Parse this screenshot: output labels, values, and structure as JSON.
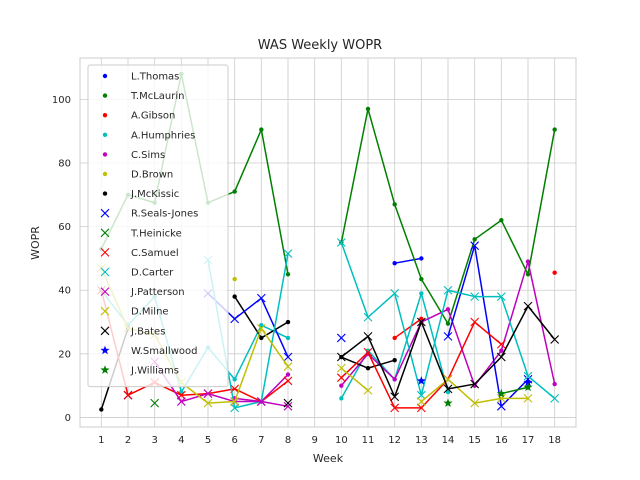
{
  "chart_data": {
    "type": "line",
    "title": "WAS Weekly WOPR",
    "xlabel": "Week",
    "ylabel": "WOPR",
    "xlim": [
      0.2,
      18.8
    ],
    "ylim": [
      -3,
      113
    ],
    "xticks": [
      1,
      2,
      3,
      4,
      5,
      6,
      7,
      8,
      9,
      10,
      11,
      12,
      13,
      14,
      15,
      16,
      17,
      18
    ],
    "yticks": [
      0,
      20,
      40,
      60,
      80,
      100
    ],
    "grid": true,
    "legend_position": "top-left",
    "series": [
      {
        "name": "L.Thomas",
        "color": "#0000ff",
        "marker": "dot",
        "x": [
          12,
          13
        ],
        "y": [
          48.5,
          50
        ]
      },
      {
        "name": "T.McLaurin",
        "color": "#008000",
        "marker": "dot",
        "x": [
          1,
          2,
          3,
          4,
          5,
          6,
          7,
          8,
          null,
          10,
          11,
          12,
          13,
          14,
          15,
          16,
          17,
          18
        ],
        "y": [
          53,
          70,
          67.5,
          108,
          67.5,
          71,
          90.5,
          45,
          null,
          55,
          97,
          67,
          43.5,
          29.5,
          56,
          62,
          45,
          90.5
        ]
      },
      {
        "name": "A.Gibson",
        "color": "#ff0000",
        "marker": "dot",
        "x": [
          12,
          13,
          null,
          18
        ],
        "y": [
          25,
          31,
          null,
          45.5
        ]
      },
      {
        "name": "A.Humphries",
        "color": "#00bfbf",
        "marker": "dot",
        "x": [
          1,
          2,
          3,
          4,
          5,
          6,
          7,
          8,
          null,
          10,
          11,
          12,
          13,
          14
        ],
        "y": [
          40,
          29,
          38,
          8,
          22,
          12,
          29,
          25,
          null,
          6,
          21,
          12,
          39,
          8
        ]
      },
      {
        "name": "C.Sims",
        "color": "#bf00bf",
        "marker": "dot",
        "x": [
          6,
          7,
          8,
          null,
          10,
          11,
          12,
          13,
          14,
          15,
          16,
          17,
          18
        ],
        "y": [
          6,
          5,
          13.5,
          null,
          10,
          20,
          12,
          30,
          34,
          10,
          21,
          49,
          10.5
        ]
      },
      {
        "name": "D.Brown",
        "color": "#bfbf00",
        "marker": "dot",
        "x": [
          6
        ],
        "y": [
          43.5
        ]
      },
      {
        "name": "J.McKissic",
        "color": "#000000",
        "marker": "dot",
        "x": [
          1,
          2,
          null,
          6,
          7,
          8,
          null,
          10,
          11,
          12
        ],
        "y": [
          2.5,
          28,
          null,
          38,
          25,
          30,
          null,
          19,
          15.5,
          18
        ]
      },
      {
        "name": "R.Seals-Jones",
        "color": "#0000ff",
        "marker": "x",
        "x": [
          2,
          null,
          5,
          6,
          7,
          8,
          null,
          10,
          null,
          14,
          15,
          16,
          17
        ],
        "y": [
          7,
          null,
          39,
          31,
          37.5,
          19,
          null,
          25,
          null,
          25.5,
          54,
          3.5,
          12
        ]
      },
      {
        "name": "T.Heinicke",
        "color": "#008000",
        "marker": "x",
        "x": [
          3
        ],
        "y": [
          4.5
        ]
      },
      {
        "name": "C.Samuel",
        "color": "#ff0000",
        "marker": "x",
        "x": [
          1,
          2,
          3,
          4,
          5,
          6,
          7,
          8,
          null,
          10,
          11,
          12,
          13,
          14,
          15,
          16
        ],
        "y": [
          40,
          7,
          11,
          7,
          7.5,
          9,
          5,
          11.5,
          null,
          12.5,
          20.5,
          3,
          3,
          12,
          30,
          23
        ]
      },
      {
        "name": "D.Carter",
        "color": "#00bfbf",
        "marker": "x",
        "x": [
          5,
          6,
          7,
          8,
          null,
          10,
          11,
          12,
          13,
          14,
          15,
          16,
          17,
          18
        ],
        "y": [
          49.5,
          3,
          5,
          51.5,
          null,
          55,
          31.5,
          39,
          7,
          40,
          38,
          38,
          13,
          6
        ]
      },
      {
        "name": "J.Patterson",
        "color": "#bf00bf",
        "marker": "x",
        "x": [
          3,
          4,
          5,
          6,
          7,
          8
        ],
        "y": [
          17.5,
          5,
          7.5,
          5,
          5,
          3.5
        ]
      },
      {
        "name": "D.Milne",
        "color": "#bfbf00",
        "marker": "x",
        "x": [
          1,
          2,
          3,
          4,
          5,
          6,
          7,
          8,
          null,
          10,
          11,
          null,
          13,
          14,
          15,
          16,
          17
        ],
        "y": [
          47,
          28,
          26,
          11,
          4.5,
          5,
          28,
          16,
          null,
          15.5,
          8.5,
          null,
          5,
          12,
          4.5,
          6,
          6
        ]
      },
      {
        "name": "J.Bates",
        "color": "#000000",
        "marker": "x",
        "x": [
          8,
          null,
          10,
          11,
          12,
          13,
          14,
          15,
          16,
          17,
          18
        ],
        "y": [
          4.5,
          null,
          19,
          25.5,
          6.5,
          30,
          9,
          10.5,
          19,
          35,
          24.5
        ]
      },
      {
        "name": "W.Smallwood",
        "color": "#0000ff",
        "marker": "star",
        "x": [
          13,
          null,
          17
        ],
        "y": [
          11.5,
          null,
          11
        ]
      },
      {
        "name": "J.Williams",
        "color": "#008000",
        "marker": "star",
        "x": [
          14,
          null,
          16,
          17
        ],
        "y": [
          4.5,
          null,
          7.5,
          9.5
        ]
      }
    ]
  }
}
